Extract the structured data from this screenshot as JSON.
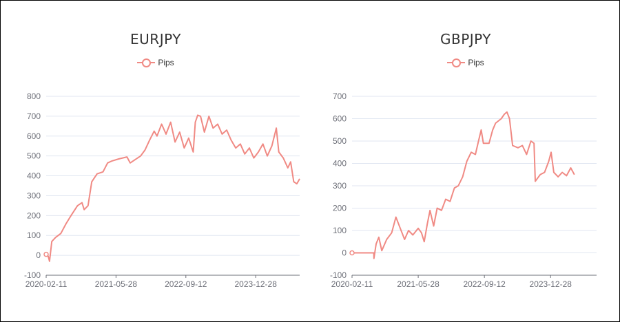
{
  "chart_data": [
    {
      "type": "line",
      "title": "EURJPY",
      "series": [
        {
          "name": "Pips",
          "color": "#f08a84"
        }
      ],
      "x_start": "2020-02-11",
      "x_end": "2024-10-20",
      "x_tick_labels": [
        "2020-02-11",
        "2021-05-28",
        "2022-09-12",
        "2023-12-28"
      ],
      "ylim": [
        -100,
        800
      ],
      "y_ticks": [
        -100,
        0,
        100,
        200,
        300,
        400,
        500,
        600,
        700,
        800
      ],
      "grid": true,
      "legend_position": "top-center",
      "points": [
        [
          "2020-02-11",
          5
        ],
        [
          "2020-02-25",
          -5
        ],
        [
          "2020-03-05",
          -30
        ],
        [
          "2020-03-20",
          70
        ],
        [
          "2020-04-15",
          90
        ],
        [
          "2020-05-20",
          110
        ],
        [
          "2020-06-25",
          160
        ],
        [
          "2020-08-01",
          205
        ],
        [
          "2020-09-10",
          250
        ],
        [
          "2020-10-10",
          265
        ],
        [
          "2020-10-25",
          230
        ],
        [
          "2020-11-20",
          250
        ],
        [
          "2020-12-15",
          370
        ],
        [
          "2021-01-20",
          410
        ],
        [
          "2021-03-01",
          420
        ],
        [
          "2021-04-01",
          465
        ],
        [
          "2021-05-01",
          475
        ],
        [
          "2021-06-15",
          485
        ],
        [
          "2021-08-10",
          495
        ],
        [
          "2021-09-01",
          465
        ],
        [
          "2021-10-01",
          480
        ],
        [
          "2021-11-10",
          500
        ],
        [
          "2021-12-10",
          530
        ],
        [
          "2022-01-10",
          580
        ],
        [
          "2022-02-10",
          625
        ],
        [
          "2022-03-01",
          600
        ],
        [
          "2022-04-01",
          660
        ],
        [
          "2022-05-01",
          610
        ],
        [
          "2022-06-01",
          670
        ],
        [
          "2022-07-01",
          570
        ],
        [
          "2022-08-01",
          620
        ],
        [
          "2022-09-01",
          540
        ],
        [
          "2022-10-01",
          590
        ],
        [
          "2022-11-01",
          520
        ],
        [
          "2022-11-15",
          670
        ],
        [
          "2022-12-01",
          705
        ],
        [
          "2022-12-20",
          700
        ],
        [
          "2023-01-15",
          620
        ],
        [
          "2023-02-15",
          700
        ],
        [
          "2023-03-15",
          640
        ],
        [
          "2023-04-15",
          660
        ],
        [
          "2023-05-15",
          610
        ],
        [
          "2023-06-15",
          630
        ],
        [
          "2023-07-15",
          580
        ],
        [
          "2023-08-15",
          540
        ],
        [
          "2023-09-15",
          560
        ],
        [
          "2023-10-15",
          510
        ],
        [
          "2023-11-15",
          540
        ],
        [
          "2023-12-15",
          490
        ],
        [
          "2024-01-15",
          520
        ],
        [
          "2024-02-15",
          560
        ],
        [
          "2024-03-15",
          500
        ],
        [
          "2024-04-15",
          550
        ],
        [
          "2024-05-15",
          640
        ],
        [
          "2024-06-01",
          520
        ],
        [
          "2024-07-01",
          490
        ],
        [
          "2024-08-01",
          440
        ],
        [
          "2024-08-20",
          470
        ],
        [
          "2024-09-10",
          370
        ],
        [
          "2024-10-01",
          360
        ],
        [
          "2024-10-20",
          385
        ]
      ]
    },
    {
      "type": "line",
      "title": "GBPJPY",
      "series": [
        {
          "name": "Pips",
          "color": "#f08a84"
        }
      ],
      "x_start": "2020-02-11",
      "x_end": "2024-11-20",
      "x_tick_labels": [
        "2020-02-11",
        "2021-05-28",
        "2022-09-12",
        "2023-12-28"
      ],
      "ylim": [
        -100,
        700
      ],
      "y_ticks": [
        -100,
        0,
        100,
        200,
        300,
        400,
        500,
        600,
        700
      ],
      "grid": true,
      "legend_position": "top-center",
      "points": [
        [
          "2020-02-11",
          0
        ],
        [
          "2020-04-01",
          0
        ],
        [
          "2020-06-01",
          0
        ],
        [
          "2020-07-15",
          0
        ],
        [
          "2020-07-16",
          -25
        ],
        [
          "2020-08-01",
          40
        ],
        [
          "2020-08-20",
          70
        ],
        [
          "2020-09-10",
          10
        ],
        [
          "2020-10-15",
          60
        ],
        [
          "2020-11-20",
          90
        ],
        [
          "2020-12-20",
          160
        ],
        [
          "2021-01-20",
          110
        ],
        [
          "2021-02-20",
          60
        ],
        [
          "2021-03-20",
          100
        ],
        [
          "2021-04-20",
          80
        ],
        [
          "2021-05-28",
          110
        ],
        [
          "2021-06-20",
          90
        ],
        [
          "2021-07-10",
          50
        ],
        [
          "2021-08-01",
          130
        ],
        [
          "2021-08-20",
          190
        ],
        [
          "2021-09-15",
          120
        ],
        [
          "2021-10-10",
          200
        ],
        [
          "2021-11-10",
          190
        ],
        [
          "2021-12-10",
          240
        ],
        [
          "2022-01-10",
          230
        ],
        [
          "2022-02-10",
          290
        ],
        [
          "2022-03-10",
          300
        ],
        [
          "2022-04-10",
          340
        ],
        [
          "2022-05-10",
          410
        ],
        [
          "2022-06-10",
          450
        ],
        [
          "2022-07-10",
          440
        ],
        [
          "2022-08-01",
          500
        ],
        [
          "2022-08-20",
          550
        ],
        [
          "2022-09-05",
          490
        ],
        [
          "2022-10-15",
          490
        ],
        [
          "2022-11-10",
          550
        ],
        [
          "2022-12-01",
          580
        ],
        [
          "2023-01-10",
          600
        ],
        [
          "2023-02-01",
          620
        ],
        [
          "2023-02-20",
          630
        ],
        [
          "2023-03-10",
          600
        ],
        [
          "2023-04-01",
          480
        ],
        [
          "2023-05-10",
          470
        ],
        [
          "2023-06-10",
          480
        ],
        [
          "2023-07-10",
          440
        ],
        [
          "2023-08-10",
          500
        ],
        [
          "2023-09-01",
          490
        ],
        [
          "2023-09-10",
          320
        ],
        [
          "2023-10-15",
          350
        ],
        [
          "2023-11-15",
          360
        ],
        [
          "2023-12-15",
          410
        ],
        [
          "2024-01-01",
          450
        ],
        [
          "2024-01-20",
          360
        ],
        [
          "2024-02-20",
          340
        ],
        [
          "2024-03-20",
          360
        ],
        [
          "2024-04-20",
          345
        ],
        [
          "2024-05-20",
          380
        ],
        [
          "2024-06-15",
          350
        ]
      ]
    }
  ]
}
